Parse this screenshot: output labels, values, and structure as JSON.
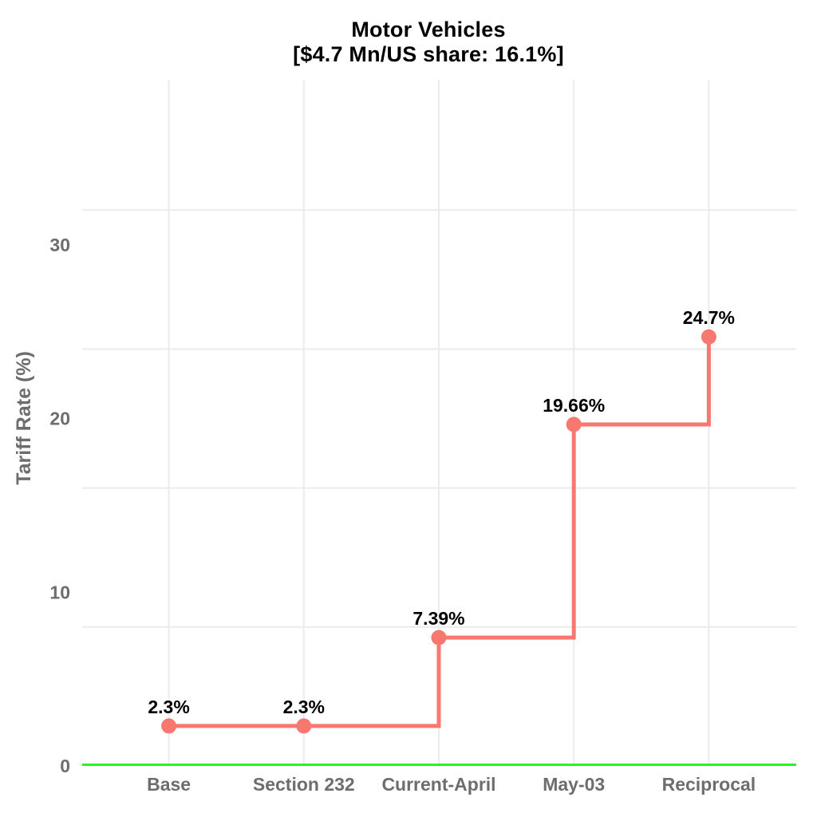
{
  "title": "Motor Vehicles",
  "subtitle": "[$4.7 Mn/US share: 16.1%]",
  "chart_data": {
    "type": "line",
    "subtype": "step",
    "step_shape": "hv",
    "title": "Motor Vehicles [$4.7 Mn/US share: 16.1%]",
    "xlabel": "",
    "ylabel": "Tariff Rate (%)",
    "categories": [
      "Base",
      "Section 232",
      "Current-April",
      "May-03",
      "Reciprocal"
    ],
    "values": [
      2.3,
      2.3,
      7.39,
      19.66,
      24.7
    ],
    "point_labels": [
      "2.3%",
      "2.3%",
      "7.39%",
      "19.66%",
      "24.7%"
    ],
    "yticks": [
      0,
      10,
      20,
      30
    ],
    "ytick_labels": [
      "0",
      "10",
      "20",
      "30"
    ],
    "ylim": [
      0,
      39.5
    ],
    "grid": true,
    "horizontal_grid_values": [
      8,
      16,
      24,
      32
    ],
    "zero_line_value": 0,
    "legend": false,
    "colors": {
      "series": "#F6786E",
      "marker": "#F6786E",
      "zero_line": "#27F327",
      "grid": "#EBEBEB",
      "axis_text": "#6D6D6D",
      "point_label_text": "#000000",
      "title_text": "#000000",
      "background": "#FFFFFF"
    }
  }
}
